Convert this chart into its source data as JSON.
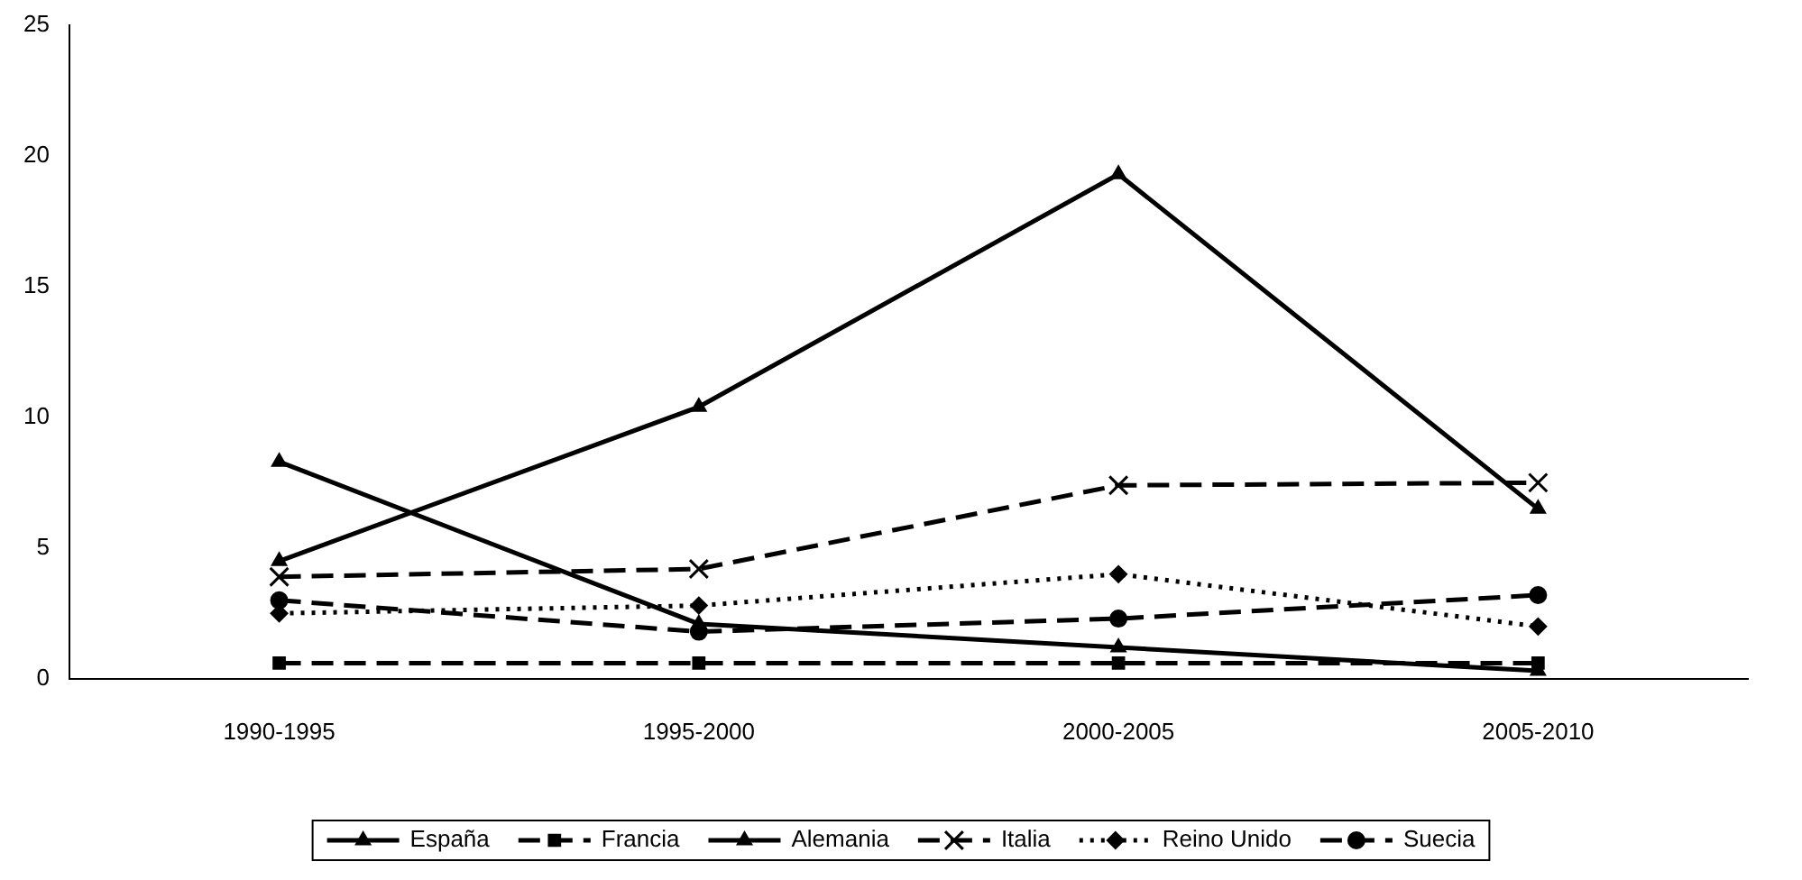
{
  "chart_data": {
    "type": "line",
    "categories": [
      "1990-1995",
      "1995-2000",
      "2000-2005",
      "2005-2010"
    ],
    "series": [
      {
        "name": "España",
        "color": "#000000",
        "values": [
          4.5,
          10.4,
          19.3,
          6.5
        ],
        "marker": "triangle",
        "line_style": "solid"
      },
      {
        "name": "Francia",
        "color": "#000000",
        "values": [
          0.6,
          0.6,
          0.6,
          0.6
        ],
        "marker": "square",
        "line_style": "dashed"
      },
      {
        "name": "Alemania",
        "color": "#000000",
        "values": [
          8.3,
          2.1,
          1.2,
          0.3
        ],
        "marker": "triangle",
        "line_style": "solid"
      },
      {
        "name": "Italia",
        "color": "#000000",
        "values": [
          3.9,
          4.2,
          7.4,
          7.5
        ],
        "marker": "cross",
        "line_style": "dashed"
      },
      {
        "name": "Reino Unido",
        "color": "#000000",
        "values": [
          2.5,
          2.8,
          4.0,
          2.0
        ],
        "marker": "diamond",
        "line_style": "dotted"
      },
      {
        "name": "Suecia",
        "color": "#000000",
        "values": [
          3.0,
          1.8,
          2.3,
          3.2
        ],
        "marker": "circle",
        "line_style": "dashed"
      }
    ],
    "ylim": [
      0,
      25
    ],
    "yticks": [
      0,
      5,
      10,
      15,
      20,
      25
    ],
    "grid": false,
    "legend": "bottom"
  }
}
